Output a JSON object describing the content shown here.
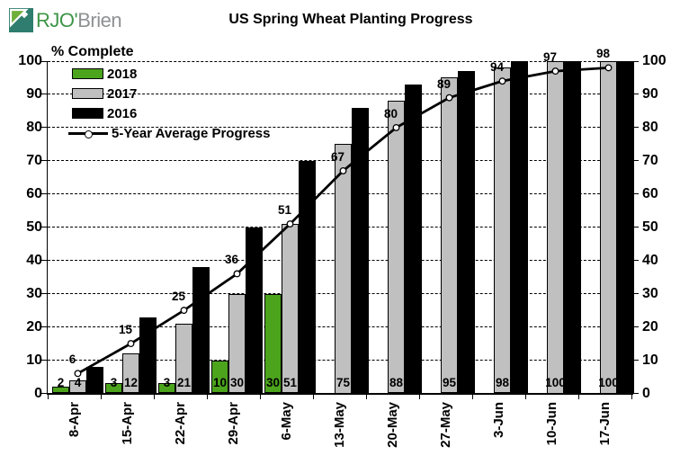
{
  "logo": {
    "text_primary": "RJO'",
    "text_secondary": "Brien",
    "icon_teal": "#2E7D6E",
    "icon_green": "#6FAF3C",
    "text_green": "#3E9548",
    "text_gray": "#8E9192"
  },
  "title": "US Spring Wheat Planting Progress",
  "axis_caption": "% Complete",
  "chart_data": {
    "type": "bar",
    "subtype": "grouped bars with overlaid line",
    "title": "US Spring Wheat Planting Progress",
    "ylabel": "% Complete",
    "categories": [
      "8-Apr",
      "15-Apr",
      "22-Apr",
      "29-Apr",
      "6-May",
      "13-May",
      "20-May",
      "27-May",
      "3-Jun",
      "10-Jun",
      "17-Jun"
    ],
    "series": [
      {
        "name": "2018",
        "type": "bar",
        "color": "#4CA41D",
        "values": [
          2,
          3,
          3,
          10,
          30,
          null,
          null,
          null,
          null,
          null,
          null
        ],
        "labels_shown": true
      },
      {
        "name": "2017",
        "type": "bar",
        "color": "#C0C0C0",
        "values": [
          4,
          12,
          21,
          30,
          51,
          75,
          88,
          95,
          98,
          100,
          100
        ],
        "labels_shown": true
      },
      {
        "name": "2016",
        "type": "bar",
        "color": "#000000",
        "values": [
          8,
          23,
          38,
          50,
          70,
          86,
          93,
          97,
          100,
          100,
          100
        ],
        "labels_shown": false
      },
      {
        "name": "5-Year Average Progress",
        "type": "line",
        "color": "#000000",
        "marker": "open-circle",
        "values": [
          6,
          15,
          25,
          36,
          51,
          67,
          80,
          89,
          94,
          97,
          98
        ],
        "labels_shown": true
      }
    ],
    "ylim": [
      0,
      100
    ],
    "yticks": [
      0,
      10,
      20,
      30,
      40,
      50,
      60,
      70,
      80,
      90,
      100
    ],
    "grid": "horizontal dashed",
    "dual_y_axis": true,
    "legend_position": "top-left"
  }
}
